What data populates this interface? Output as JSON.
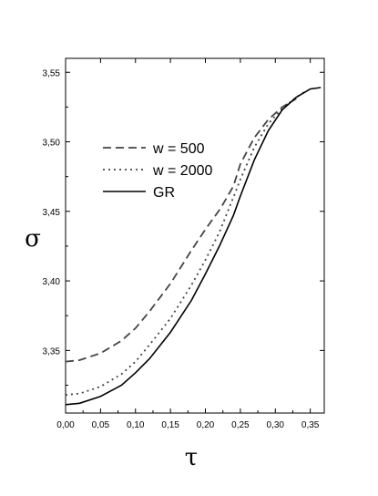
{
  "chart_data": {
    "type": "line",
    "title": "",
    "xlabel": "τ",
    "ylabel": "σ",
    "xlim": [
      0.0,
      0.37
    ],
    "ylim": [
      3.305,
      3.56
    ],
    "x_ticks": [
      0.0,
      0.05,
      0.1,
      0.15,
      0.2,
      0.25,
      0.3,
      0.35
    ],
    "x_tick_labels": [
      "0,00",
      "0,05",
      "0,10",
      "0,15",
      "0,20",
      "0,25",
      "0,30",
      "0,35"
    ],
    "y_ticks": [
      3.35,
      3.4,
      3.45,
      3.5,
      3.55
    ],
    "y_tick_labels": [
      "3,35",
      "3,40",
      "3,45",
      "3,50",
      "3,55"
    ],
    "grid": false,
    "legend_position": "upper-left",
    "series": [
      {
        "name": "w = 500",
        "style": "dashed",
        "color": "#444444",
        "x": [
          0.0,
          0.02,
          0.05,
          0.08,
          0.1,
          0.12,
          0.15,
          0.18,
          0.2,
          0.22,
          0.225,
          0.24,
          0.25,
          0.27,
          0.29,
          0.31,
          0.33
        ],
        "y": [
          3.342,
          3.343,
          3.348,
          3.357,
          3.366,
          3.378,
          3.398,
          3.422,
          3.437,
          3.451,
          3.455,
          3.468,
          3.484,
          3.503,
          3.516,
          3.525,
          3.531
        ]
      },
      {
        "name": "w = 2000",
        "style": "dotted",
        "color": "#444444",
        "x": [
          0.0,
          0.02,
          0.05,
          0.08,
          0.1,
          0.12,
          0.15,
          0.18,
          0.2,
          0.22,
          0.24,
          0.25,
          0.27,
          0.29,
          0.31,
          0.33,
          0.345
        ],
        "y": [
          3.318,
          3.319,
          3.324,
          3.333,
          3.342,
          3.354,
          3.373,
          3.397,
          3.415,
          3.435,
          3.46,
          3.473,
          3.496,
          3.513,
          3.524,
          3.532,
          3.537
        ]
      },
      {
        "name": "GR",
        "style": "solid",
        "color": "#000000",
        "x": [
          0.0,
          0.02,
          0.05,
          0.08,
          0.1,
          0.12,
          0.15,
          0.18,
          0.2,
          0.22,
          0.24,
          0.25,
          0.27,
          0.29,
          0.31,
          0.33,
          0.35,
          0.365
        ],
        "y": [
          3.311,
          3.312,
          3.317,
          3.325,
          3.334,
          3.344,
          3.363,
          3.386,
          3.405,
          3.425,
          3.447,
          3.461,
          3.487,
          3.508,
          3.523,
          3.532,
          3.538,
          3.539
        ]
      }
    ]
  }
}
